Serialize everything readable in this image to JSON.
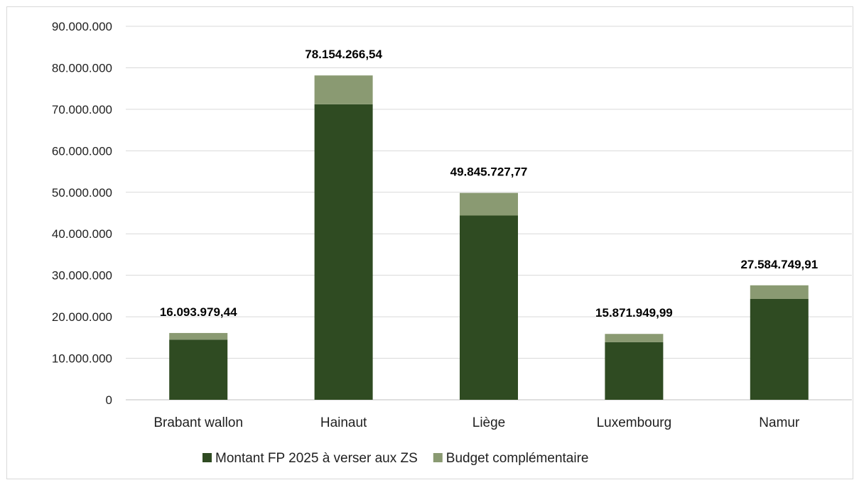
{
  "chart_data": {
    "type": "bar",
    "stacked": true,
    "categories": [
      "Brabant wallon",
      "Hainaut",
      "Liège",
      "Luxembourg",
      "Namur"
    ],
    "series": [
      {
        "name": "Montant FP 2025 à verser aux ZS",
        "color": "#2f4b22",
        "values": [
          14500000,
          71200000,
          44400000,
          13900000,
          24300000
        ]
      },
      {
        "name": "Budget complémentaire",
        "color": "#8a9a72",
        "values": [
          1593979.44,
          6954266.54,
          5445727.77,
          1971949.99,
          3284749.91
        ]
      }
    ],
    "totals_labels": [
      "16.093.979,44",
      "78.154.266,54",
      "49.845.727,77",
      "15.871.949,99",
      "27.584.749,91"
    ],
    "ylim": [
      0,
      90000000
    ],
    "yticks": [
      {
        "value": 0,
        "label": "0"
      },
      {
        "value": 10000000,
        "label": "10.000.000"
      },
      {
        "value": 20000000,
        "label": "20.000.000"
      },
      {
        "value": 30000000,
        "label": "30.000.000"
      },
      {
        "value": 40000000,
        "label": "40.000.000"
      },
      {
        "value": 50000000,
        "label": "50.000.000"
      },
      {
        "value": 60000000,
        "label": "60.000.000"
      },
      {
        "value": 70000000,
        "label": "70.000.000"
      },
      {
        "value": 80000000,
        "label": "80.000.000"
      },
      {
        "value": 90000000,
        "label": "90.000.000"
      }
    ],
    "grid": true,
    "legend_position": "bottom"
  }
}
